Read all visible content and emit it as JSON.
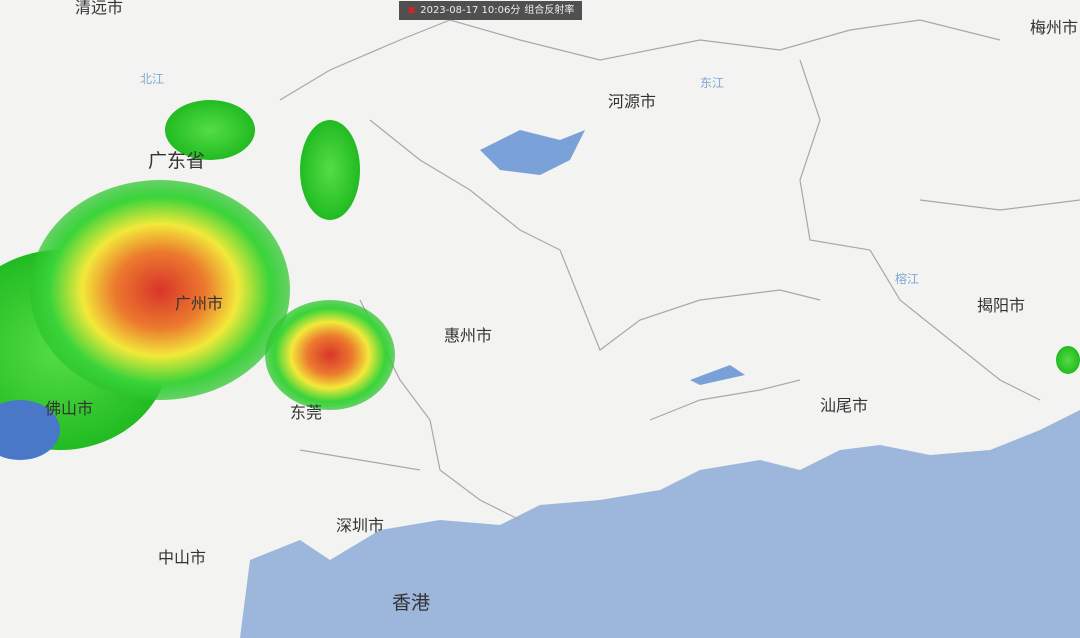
{
  "banner": {
    "timestamp": "2023-08-17 10:06分",
    "product": "组合反射率",
    "close_icon": "red-x-icon"
  },
  "cities": [
    {
      "name": "清远市"
    },
    {
      "name": "广东省"
    },
    {
      "name": "广州市"
    },
    {
      "name": "佛山市"
    },
    {
      "name": "东莞"
    },
    {
      "name": "深圳市"
    },
    {
      "name": "中山市"
    },
    {
      "name": "香港"
    },
    {
      "name": "惠州市"
    },
    {
      "name": "河源市"
    },
    {
      "name": "汕尾市"
    },
    {
      "name": "揭阳市"
    },
    {
      "name": "梅州市"
    }
  ],
  "rivers": [
    {
      "name": "北江"
    },
    {
      "name": "东江"
    },
    {
      "name": "榕江"
    }
  ],
  "colors": {
    "land": "#f3f3f1",
    "sea": "#9db6dc",
    "border": "#a8a8a8",
    "radar_low": "#22cc22",
    "radar_mid": "#f2e93a",
    "radar_high": "#e03a2a"
  }
}
